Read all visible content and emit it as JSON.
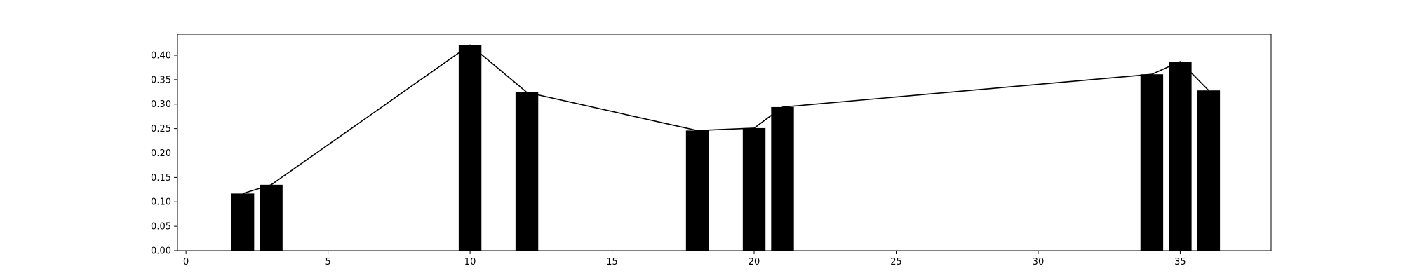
{
  "chart_data": {
    "type": "bar",
    "title": "",
    "xlabel": "",
    "ylabel": "",
    "xlim": [
      -0.3,
      38.2
    ],
    "ylim": [
      0,
      0.443
    ],
    "grid": false,
    "bar_width": 0.8,
    "x_ticks": [
      0,
      5,
      10,
      15,
      20,
      25,
      30,
      35
    ],
    "x_tick_labels": [
      "0",
      "5",
      "10",
      "15",
      "20",
      "25",
      "30",
      "35"
    ],
    "y_ticks": [
      0.0,
      0.05,
      0.1,
      0.15,
      0.2,
      0.25,
      0.3,
      0.35,
      0.4
    ],
    "y_tick_labels": [
      "0.00",
      "0.05",
      "0.10",
      "0.15",
      "0.20",
      "0.25",
      "0.30",
      "0.35",
      "0.40"
    ],
    "x": [
      2,
      3,
      10,
      12,
      18,
      20,
      21,
      34,
      35,
      36
    ],
    "values": [
      0.117,
      0.135,
      0.421,
      0.324,
      0.246,
      0.251,
      0.294,
      0.361,
      0.387,
      0.328
    ],
    "bar_color": "#000000",
    "line_color": "#000000",
    "line_overlay": true
  }
}
